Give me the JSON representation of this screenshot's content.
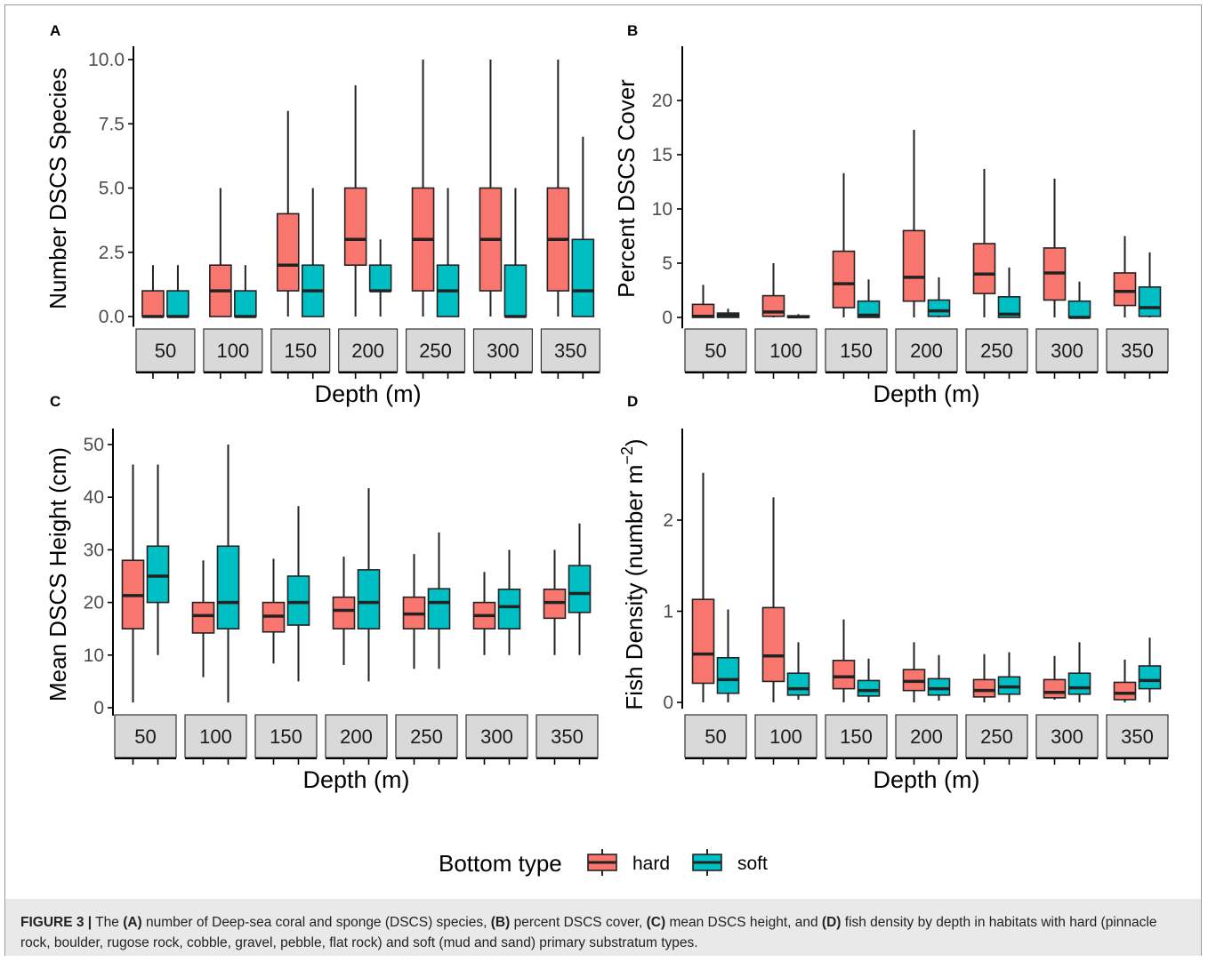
{
  "colors": {
    "hard": "#F8766D",
    "soft": "#00BFC4",
    "strip": "#d9d9d9",
    "ink": "#222222"
  },
  "legend": {
    "title": "Bottom type",
    "items": [
      "hard",
      "soft"
    ]
  },
  "caption": {
    "label": "FIGURE 3 |",
    "parts": [
      {
        "text": " The ",
        "bold": false
      },
      {
        "text": "(A)",
        "bold": true
      },
      {
        "text": " number of Deep-sea coral and sponge (DSCS) species, ",
        "bold": false
      },
      {
        "text": "(B)",
        "bold": true
      },
      {
        "text": " percent DSCS cover, ",
        "bold": false
      },
      {
        "text": "(C)",
        "bold": true
      },
      {
        "text": " mean DSCS height, and ",
        "bold": false
      },
      {
        "text": "(D)",
        "bold": true
      },
      {
        "text": " fish density by depth in habitats with hard (pinnacle rock, boulder, rugose rock, cobble, gravel, pebble, flat rock) and soft (mud and sand) primary substratum types.",
        "bold": false
      }
    ]
  },
  "chart_data": [
    {
      "panel": "A",
      "type": "boxplot",
      "ylabel": "Number DSCS Species",
      "xlabel": "Depth (m)",
      "ylim": [
        -0.4,
        10.5
      ],
      "yticks": [
        0.0,
        2.5,
        5.0,
        7.5,
        10.0
      ],
      "ytick_labels": [
        "0.0",
        "2.5",
        "5.0",
        "7.5",
        "10.0"
      ],
      "categories": [
        "50",
        "100",
        "150",
        "200",
        "250",
        "300",
        "350"
      ],
      "series": [
        {
          "name": "hard",
          "boxes": [
            {
              "min": 0,
              "q1": 0,
              "median": 0,
              "q3": 1,
              "max": 2
            },
            {
              "min": 0,
              "q1": 0,
              "median": 1,
              "q3": 2,
              "max": 5
            },
            {
              "min": 0,
              "q1": 1,
              "median": 2,
              "q3": 4,
              "max": 8
            },
            {
              "min": 0,
              "q1": 2,
              "median": 3,
              "q3": 5,
              "max": 9
            },
            {
              "min": 0,
              "q1": 1,
              "median": 3,
              "q3": 5,
              "max": 10
            },
            {
              "min": 0,
              "q1": 1,
              "median": 3,
              "q3": 5,
              "max": 10
            },
            {
              "min": 0,
              "q1": 1,
              "median": 3,
              "q3": 5,
              "max": 10
            }
          ]
        },
        {
          "name": "soft",
          "boxes": [
            {
              "min": 0,
              "q1": 0,
              "median": 0,
              "q3": 1,
              "max": 2
            },
            {
              "min": 0,
              "q1": 0,
              "median": 0,
              "q3": 1,
              "max": 2
            },
            {
              "min": 0,
              "q1": 0,
              "median": 1,
              "q3": 2,
              "max": 5
            },
            {
              "min": 0,
              "q1": 1,
              "median": 1,
              "q3": 2,
              "max": 3
            },
            {
              "min": 0,
              "q1": 0,
              "median": 1,
              "q3": 2,
              "max": 5
            },
            {
              "min": 0,
              "q1": 0,
              "median": 0,
              "q3": 2,
              "max": 5
            },
            {
              "min": 0,
              "q1": 0,
              "median": 1,
              "q3": 3,
              "max": 7
            }
          ]
        }
      ]
    },
    {
      "panel": "B",
      "type": "boxplot",
      "ylabel": "Percent DSCS Cover",
      "xlabel": "Depth (m)",
      "ylim": [
        -1,
        25
      ],
      "yticks": [
        0,
        5,
        10,
        15,
        20
      ],
      "ytick_labels": [
        "0",
        "5",
        "10",
        "15",
        "20"
      ],
      "categories": [
        "50",
        "100",
        "150",
        "200",
        "250",
        "300",
        "350"
      ],
      "series": [
        {
          "name": "hard",
          "boxes": [
            {
              "min": 0,
              "q1": 0,
              "median": 0.1,
              "q3": 1.2,
              "max": 3
            },
            {
              "min": 0,
              "q1": 0.1,
              "median": 0.5,
              "q3": 2,
              "max": 5
            },
            {
              "min": 0,
              "q1": 0.9,
              "median": 3.1,
              "q3": 6.1,
              "max": 13.3
            },
            {
              "min": 0,
              "q1": 1.5,
              "median": 3.7,
              "q3": 8,
              "max": 17.3
            },
            {
              "min": 0,
              "q1": 2.2,
              "median": 4,
              "q3": 6.8,
              "max": 13.7
            },
            {
              "min": 0,
              "q1": 1.6,
              "median": 4.1,
              "q3": 6.4,
              "max": 12.8
            },
            {
              "min": 0,
              "q1": 1.1,
              "median": 2.4,
              "q3": 4.1,
              "max": 7.5
            }
          ]
        },
        {
          "name": "soft",
          "boxes": [
            {
              "min": 0,
              "q1": 0,
              "median": 0.2,
              "q3": 0.4,
              "max": 0.8
            },
            {
              "min": 0,
              "q1": 0,
              "median": 0.05,
              "q3": 0.15,
              "max": 0.3
            },
            {
              "min": 0,
              "q1": 0,
              "median": 0.2,
              "q3": 1.5,
              "max": 3.5
            },
            {
              "min": 0,
              "q1": 0.1,
              "median": 0.6,
              "q3": 1.6,
              "max": 3.7
            },
            {
              "min": 0,
              "q1": 0,
              "median": 0.3,
              "q3": 1.9,
              "max": 4.6
            },
            {
              "min": 0,
              "q1": 0,
              "median": 0,
              "q3": 1.5,
              "max": 3.3
            },
            {
              "min": 0,
              "q1": 0.1,
              "median": 0.9,
              "q3": 2.8,
              "max": 6
            }
          ]
        }
      ]
    },
    {
      "panel": "C",
      "type": "boxplot",
      "ylabel": "Mean DSCS Height (cm)",
      "xlabel": "Depth (m)",
      "ylim": [
        -1.5,
        52
      ],
      "yticks": [
        0,
        10,
        20,
        30,
        40,
        50
      ],
      "ytick_labels": [
        "0",
        "10",
        "20",
        "30",
        "40",
        "50"
      ],
      "categories": [
        "50",
        "100",
        "150",
        "200",
        "250",
        "300",
        "350"
      ],
      "series": [
        {
          "name": "hard",
          "boxes": [
            {
              "min": 1,
              "q1": 15,
              "median": 21.3,
              "q3": 28,
              "max": 46.2
            },
            {
              "min": 5.8,
              "q1": 14.2,
              "median": 17.5,
              "q3": 20,
              "max": 28
            },
            {
              "min": 8.4,
              "q1": 14.4,
              "median": 17.4,
              "q3": 20,
              "max": 28.3
            },
            {
              "min": 8.1,
              "q1": 15,
              "median": 18.5,
              "q3": 21,
              "max": 28.7
            },
            {
              "min": 7.4,
              "q1": 15,
              "median": 17.8,
              "q3": 21,
              "max": 29.2
            },
            {
              "min": 10,
              "q1": 15,
              "median": 17.5,
              "q3": 20,
              "max": 25.8
            },
            {
              "min": 10,
              "q1": 17,
              "median": 20,
              "q3": 22.5,
              "max": 30
            }
          ]
        },
        {
          "name": "soft",
          "boxes": [
            {
              "min": 10,
              "q1": 20,
              "median": 25,
              "q3": 30.7,
              "max": 46.2
            },
            {
              "min": 1,
              "q1": 15,
              "median": 20,
              "q3": 30.7,
              "max": 50
            },
            {
              "min": 5,
              "q1": 15.7,
              "median": 20,
              "q3": 25,
              "max": 38.3
            },
            {
              "min": 5,
              "q1": 15,
              "median": 20,
              "q3": 26.2,
              "max": 41.7
            },
            {
              "min": 7.4,
              "q1": 15,
              "median": 20,
              "q3": 22.6,
              "max": 33.3
            },
            {
              "min": 10,
              "q1": 15,
              "median": 19.2,
              "q3": 22.5,
              "max": 30
            },
            {
              "min": 10,
              "q1": 18.1,
              "median": 21.7,
              "q3": 27,
              "max": 35
            }
          ]
        }
      ]
    },
    {
      "panel": "D",
      "type": "boxplot",
      "ylabel": "Fish Density (number m−2)",
      "xlabel": "Depth (m)",
      "ylim": [
        -0.07,
        2.95
      ],
      "yticks": [
        0,
        1,
        2
      ],
      "ytick_labels": [
        "0",
        "1",
        "2"
      ],
      "categories": [
        "50",
        "100",
        "150",
        "200",
        "250",
        "300",
        "350"
      ],
      "series": [
        {
          "name": "hard",
          "boxes": [
            {
              "min": 0,
              "q1": 0.21,
              "median": 0.53,
              "q3": 1.13,
              "max": 2.52
            },
            {
              "min": 0,
              "q1": 0.23,
              "median": 0.51,
              "q3": 1.04,
              "max": 2.25
            },
            {
              "min": 0,
              "q1": 0.15,
              "median": 0.28,
              "q3": 0.46,
              "max": 0.91
            },
            {
              "min": 0,
              "q1": 0.13,
              "median": 0.23,
              "q3": 0.36,
              "max": 0.66
            },
            {
              "min": 0,
              "q1": 0.06,
              "median": 0.13,
              "q3": 0.25,
              "max": 0.53
            },
            {
              "min": 0.03,
              "q1": 0.05,
              "median": 0.11,
              "q3": 0.25,
              "max": 0.51
            },
            {
              "min": 0,
              "q1": 0.03,
              "median": 0.1,
              "q3": 0.22,
              "max": 0.47
            }
          ]
        },
        {
          "name": "soft",
          "boxes": [
            {
              "min": 0,
              "q1": 0.1,
              "median": 0.25,
              "q3": 0.49,
              "max": 1.02
            },
            {
              "min": 0.03,
              "q1": 0.08,
              "median": 0.15,
              "q3": 0.32,
              "max": 0.66
            },
            {
              "min": 0,
              "q1": 0.07,
              "median": 0.13,
              "q3": 0.24,
              "max": 0.48
            },
            {
              "min": 0.02,
              "q1": 0.08,
              "median": 0.15,
              "q3": 0.26,
              "max": 0.52
            },
            {
              "min": 0,
              "q1": 0.09,
              "median": 0.17,
              "q3": 0.28,
              "max": 0.55
            },
            {
              "min": 0,
              "q1": 0.09,
              "median": 0.16,
              "q3": 0.32,
              "max": 0.66
            },
            {
              "min": 0,
              "q1": 0.15,
              "median": 0.24,
              "q3": 0.4,
              "max": 0.71
            }
          ]
        }
      ]
    }
  ]
}
